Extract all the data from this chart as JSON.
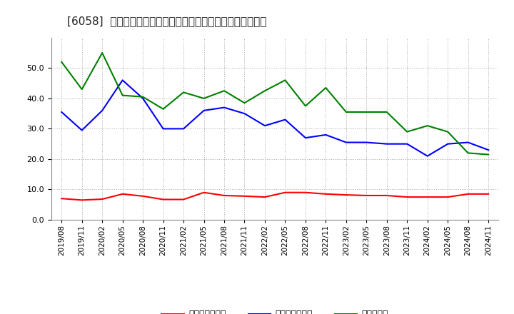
{
  "title": "[6058]  売上債権回転率、買入債務回転率、在庫回転率の推移",
  "dates": [
    "2019/08",
    "2019/11",
    "2020/02",
    "2020/05",
    "2020/08",
    "2020/11",
    "2021/02",
    "2021/05",
    "2021/08",
    "2021/11",
    "2022/02",
    "2022/05",
    "2022/08",
    "2022/11",
    "2023/02",
    "2023/05",
    "2023/08",
    "2023/11",
    "2024/02",
    "2024/05",
    "2024/08",
    "2024/11"
  ],
  "accounts_receivable_turnover": [
    7.0,
    6.5,
    6.8,
    8.5,
    7.8,
    6.7,
    6.7,
    9.0,
    8.0,
    7.8,
    7.5,
    9.0,
    9.0,
    8.5,
    8.2,
    8.0,
    8.0,
    7.5,
    7.5,
    7.5,
    8.5,
    8.5
  ],
  "accounts_payable_turnover": [
    35.5,
    29.5,
    36.0,
    46.0,
    40.0,
    30.0,
    30.0,
    36.0,
    37.0,
    35.0,
    31.0,
    33.0,
    27.0,
    28.0,
    25.5,
    25.5,
    25.0,
    25.0,
    21.0,
    25.0,
    25.5,
    23.0
  ],
  "inventory_turnover": [
    52.0,
    43.0,
    55.0,
    41.0,
    40.5,
    36.5,
    42.0,
    40.0,
    42.5,
    38.5,
    42.5,
    46.0,
    37.5,
    43.5,
    35.5,
    35.5,
    35.5,
    29.0,
    31.0,
    29.0,
    22.0,
    21.5
  ],
  "color_receivable": "#ff0000",
  "color_payable": "#0000ff",
  "color_inventory": "#008000",
  "legend_receivable": "売上債権回転率",
  "legend_payable": "買入債務回転率",
  "legend_inventory": "在庫回転率",
  "ylim": [
    0.0,
    60.0
  ],
  "yticks": [
    0.0,
    10.0,
    20.0,
    30.0,
    40.0,
    50.0
  ],
  "background_color": "#ffffff",
  "grid_color": "#aaaaaa",
  "title_fontsize": 11,
  "linewidth": 1.5
}
